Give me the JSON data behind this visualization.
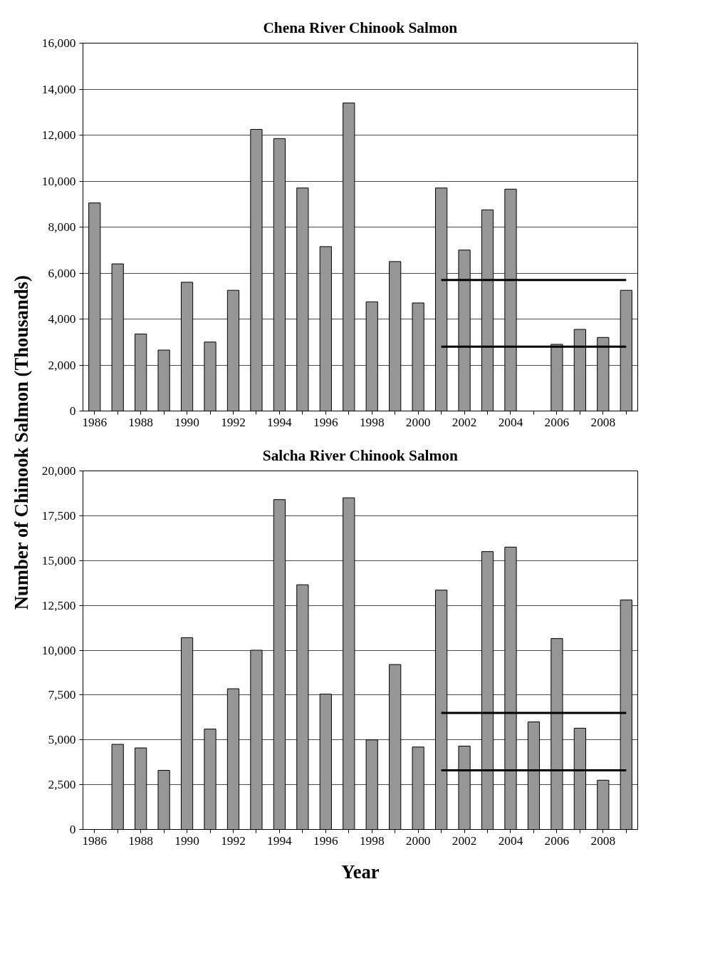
{
  "chart_data": [
    {
      "type": "bar",
      "title": "Chena River Chinook Salmon",
      "ylabel": "Number of Chinook Salmon (Thousands)",
      "categories": [
        "1986",
        null,
        "1988",
        null,
        "1990",
        null,
        "1992",
        null,
        "1994",
        null,
        "1996",
        null,
        "1998",
        null,
        "2000",
        null,
        "2002",
        null,
        "2004",
        null,
        "2006",
        null,
        "2008",
        null
      ],
      "series": [
        {
          "color": "#969696",
          "values": [
            9050,
            6400,
            3350,
            2650,
            5600,
            3000,
            5250,
            12250,
            11850,
            9700,
            7150,
            13400,
            4750,
            6500,
            4700,
            9700,
            7000,
            8750,
            9650,
            null,
            2900,
            3550,
            3200,
            5250
          ]
        },
        {
          "type": "line",
          "color": "#000000",
          "values": [
            null,
            null,
            null,
            null,
            null,
            null,
            null,
            null,
            null,
            null,
            null,
            null,
            null,
            null,
            null,
            5700,
            5700,
            5700,
            5700,
            5700,
            5700,
            5700,
            5700,
            5700
          ]
        },
        {
          "type": "line",
          "color": "#000000",
          "values": [
            null,
            null,
            null,
            null,
            null,
            null,
            null,
            null,
            null,
            null,
            null,
            null,
            null,
            null,
            null,
            2800,
            2800,
            2800,
            2800,
            2800,
            2800,
            2800,
            2800,
            2800
          ]
        }
      ],
      "ylim": [
        0,
        16000
      ],
      "yticks": [
        0,
        {
          "value": 2000,
          "label": "2,000"
        },
        {
          "value": 4000,
          "label": "4,000"
        },
        {
          "value": 6000,
          "label": "6,000"
        },
        {
          "value": 8000,
          "label": "8,000"
        },
        {
          "value": 10000,
          "label": "10,000"
        },
        {
          "value": 12000,
          "label": "12,000"
        },
        {
          "value": 14000,
          "label": "14,000"
        },
        {
          "value": 16000,
          "label": "16,000"
        }
      ],
      "grid": "y"
    },
    {
      "type": "bar",
      "title": "Salcha River Chinook Salmon",
      "xlabel": "Year",
      "categories": [
        "1986",
        null,
        "1988",
        null,
        "1990",
        null,
        "1992",
        null,
        "1994",
        null,
        "1996",
        null,
        "1998",
        null,
        "2000",
        null,
        "2002",
        null,
        "2004",
        null,
        "2006",
        null,
        "2008",
        null
      ],
      "series": [
        {
          "color": "#969696",
          "values": [
            null,
            4750,
            4550,
            3300,
            10700,
            5600,
            7850,
            10000,
            18400,
            13650,
            7550,
            18500,
            5000,
            9200,
            4600,
            13350,
            4650,
            15500,
            15750,
            6000,
            10650,
            5650,
            2750,
            12800
          ]
        },
        {
          "type": "line",
          "color": "#000000",
          "values": [
            null,
            null,
            null,
            null,
            null,
            null,
            null,
            null,
            null,
            null,
            null,
            null,
            null,
            null,
            null,
            6500,
            6500,
            6500,
            6500,
            6500,
            6500,
            6500,
            6500,
            6500
          ]
        },
        {
          "type": "line",
          "color": "#000000",
          "values": [
            null,
            null,
            null,
            null,
            null,
            null,
            null,
            null,
            null,
            null,
            null,
            null,
            null,
            null,
            null,
            3300,
            3300,
            3300,
            3300,
            3300,
            3300,
            3300,
            3300,
            3300
          ]
        }
      ],
      "ylim": [
        0,
        20000
      ],
      "yticks": [
        0,
        {
          "value": 2500,
          "label": "2,500"
        },
        {
          "value": 5000,
          "label": "5,000"
        },
        {
          "value": 7500,
          "label": "7,500"
        },
        {
          "value": 10000,
          "label": "10,000"
        },
        {
          "value": 12500,
          "label": "12,500"
        },
        {
          "value": 15000,
          "label": "15,000"
        },
        {
          "value": 17500,
          "label": "17,500"
        },
        {
          "value": 20000,
          "label": "20,000"
        }
      ],
      "grid": "y"
    }
  ]
}
